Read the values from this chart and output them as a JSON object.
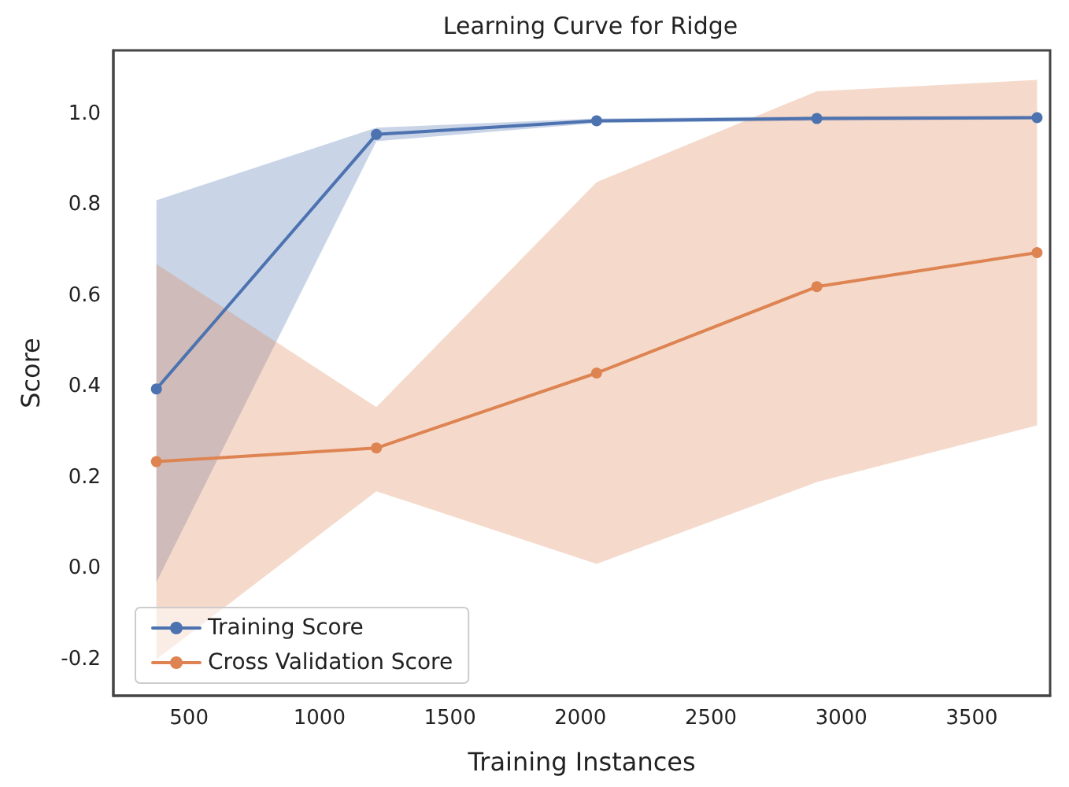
{
  "chart_data": {
    "type": "line",
    "title": "Learning Curve for Ridge",
    "xlabel": "Training Instances",
    "ylabel": "Score",
    "x": [
      375,
      1218,
      2062,
      2906,
      3750
    ],
    "series": [
      {
        "name": "Training Score",
        "color": "#4c72b0",
        "values": [
          0.395,
          0.955,
          0.985,
          0.99,
          0.992
        ],
        "lower": [
          -0.03,
          0.94,
          0.98,
          0.985,
          0.988
        ],
        "upper": [
          0.81,
          0.97,
          0.99,
          0.995,
          0.996
        ]
      },
      {
        "name": "Cross Validation Score",
        "color": "#dd8452",
        "values": [
          0.235,
          0.265,
          0.43,
          0.62,
          0.695
        ],
        "lower": [
          -0.2,
          0.17,
          0.01,
          0.19,
          0.315
        ],
        "upper": [
          0.67,
          0.355,
          0.85,
          1.05,
          1.075
        ]
      }
    ],
    "xlim": [
      210,
      3800
    ],
    "xticks": [
      500,
      1000,
      1500,
      2000,
      2500,
      3000,
      3500
    ],
    "ylim": [
      -0.28,
      1.14
    ],
    "yticks": [
      -0.2,
      {
        "value": 0,
        "label": "0.0"
      },
      0.2,
      0.4,
      0.6,
      0.8,
      {
        "value": 1,
        "label": "1.0"
      }
    ],
    "grid": false,
    "legend": "bottom left",
    "marker": "circle",
    "line_style": "solid"
  }
}
